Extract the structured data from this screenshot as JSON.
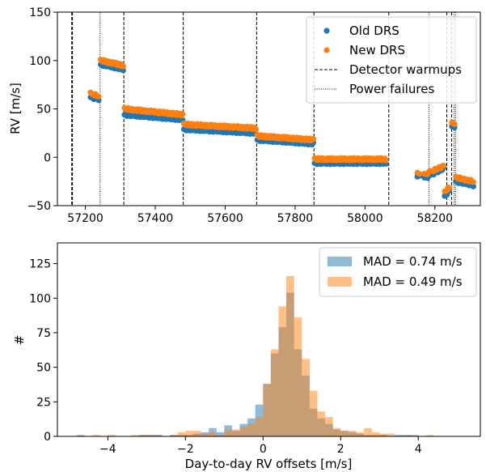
{
  "chart_data": [
    {
      "type": "scatter",
      "ylabel": "RV [m/s]",
      "xlabel": "",
      "xlim": [
        57120,
        58330
      ],
      "ylim": [
        -50,
        150
      ],
      "x_ticks": [
        57200,
        57400,
        57600,
        57800,
        58000,
        58200
      ],
      "y_ticks": [
        -50,
        0,
        50,
        100,
        150
      ],
      "legend_placement": "top-right",
      "colors": {
        "old": "#1f77b4",
        "new": "#ff7f0e"
      },
      "series": [
        {
          "name": "Old DRS",
          "segments": [
            {
              "x0": 57215,
              "x1": 57238,
              "y0": 62,
              "y1": 60,
              "n": 6
            },
            {
              "x0": 57244,
              "x1": 57308,
              "y0": 96,
              "y1": 91,
              "n": 22
            },
            {
              "x0": 57312,
              "x1": 57478,
              "y0": 44,
              "y1": 39,
              "n": 50
            },
            {
              "x0": 57482,
              "x1": 57688,
              "y0": 29,
              "y1": 25,
              "n": 60
            },
            {
              "x0": 57692,
              "x1": 57852,
              "y0": 18,
              "y1": 14,
              "n": 48
            },
            {
              "x0": 57856,
              "x1": 58060,
              "y0": -6,
              "y1": -6,
              "n": 60
            },
            {
              "x0": 58150,
              "x1": 58156,
              "y0": -20,
              "y1": -20,
              "n": 2
            },
            {
              "x0": 58170,
              "x1": 58183,
              "y0": -21,
              "y1": -20,
              "n": 4
            },
            {
              "x0": 58188,
              "x1": 58225,
              "y0": -18,
              "y1": -12,
              "n": 10
            },
            {
              "x0": 58228,
              "x1": 58241,
              "y0": -40,
              "y1": -35,
              "n": 5
            },
            {
              "x0": 58249,
              "x1": 58256,
              "y0": 32,
              "y1": 32,
              "n": 3
            },
            {
              "x0": 58260,
              "x1": 58310,
              "y0": -25,
              "y1": -29,
              "n": 14
            }
          ]
        },
        {
          "name": "New DRS",
          "segments": [
            {
              "x0": 57215,
              "x1": 57238,
              "y0": 66,
              "y1": 63,
              "n": 6
            },
            {
              "x0": 57244,
              "x1": 57308,
              "y0": 100,
              "y1": 95,
              "n": 22
            },
            {
              "x0": 57312,
              "x1": 57478,
              "y0": 50,
              "y1": 44,
              "n": 50
            },
            {
              "x0": 57482,
              "x1": 57688,
              "y0": 34,
              "y1": 30,
              "n": 60
            },
            {
              "x0": 57692,
              "x1": 57852,
              "y0": 22,
              "y1": 18,
              "n": 48
            },
            {
              "x0": 57856,
              "x1": 58060,
              "y0": -2,
              "y1": -2,
              "n": 60
            },
            {
              "x0": 58150,
              "x1": 58156,
              "y0": -17,
              "y1": -17,
              "n": 2
            },
            {
              "x0": 58170,
              "x1": 58183,
              "y0": -18,
              "y1": -16,
              "n": 4
            },
            {
              "x0": 58188,
              "x1": 58225,
              "y0": -15,
              "y1": -9,
              "n": 10
            },
            {
              "x0": 58228,
              "x1": 58241,
              "y0": -36,
              "y1": -31,
              "n": 5
            },
            {
              "x0": 58249,
              "x1": 58256,
              "y0": 35,
              "y1": 35,
              "n": 3
            },
            {
              "x0": 58260,
              "x1": 58310,
              "y0": -21,
              "y1": -25,
              "n": 14
            }
          ]
        }
      ],
      "vlines": {
        "detector_warmups": [
          57161,
          57163,
          57310,
          57480,
          57690,
          57854,
          58068,
          58234,
          58248
        ],
        "power_failures": [
          57242,
          58183,
          58255,
          58259
        ]
      },
      "legend": [
        "Old DRS",
        "New DRS",
        "Detector warmups",
        "Power failures"
      ]
    },
    {
      "type": "histogram",
      "xlabel": "Day-to-day RV offsets [m/s]",
      "ylabel": "#",
      "xlim": [
        -5.3,
        5.6
      ],
      "ylim": [
        0,
        140
      ],
      "x_ticks": [
        -4,
        -2,
        0,
        2,
        4
      ],
      "y_ticks": [
        0,
        25,
        50,
        75,
        100,
        125
      ],
      "bin_start": -4.8,
      "bin_width": 0.2,
      "legend_placement": "top-right",
      "series": [
        {
          "name": "MAD = 0.74 m/s",
          "color": "#1f77b4",
          "counts": [
            1,
            0,
            0,
            0,
            0,
            0,
            0,
            0,
            1,
            1,
            1,
            0,
            1,
            1,
            1,
            2,
            3,
            6,
            3,
            8,
            4,
            9,
            13,
            23,
            38,
            60,
            79,
            104,
            63,
            44,
            20,
            13,
            9,
            5,
            4,
            3,
            2,
            1,
            1,
            1,
            0,
            1,
            1,
            1,
            0,
            0,
            0,
            0
          ]
        },
        {
          "name": "MAD = 0.49 m/s",
          "color": "#ff7f0e",
          "counts": [
            0,
            0,
            1,
            0,
            1,
            0,
            0,
            1,
            1,
            1,
            1,
            0,
            1,
            3,
            4,
            4,
            2,
            3,
            1,
            5,
            5,
            7,
            9,
            14,
            38,
            63,
            94,
            116,
            86,
            56,
            33,
            18,
            14,
            6,
            4,
            4,
            3,
            6,
            3,
            2,
            2,
            0,
            1,
            0,
            0,
            1,
            0,
            0
          ]
        }
      ]
    }
  ]
}
